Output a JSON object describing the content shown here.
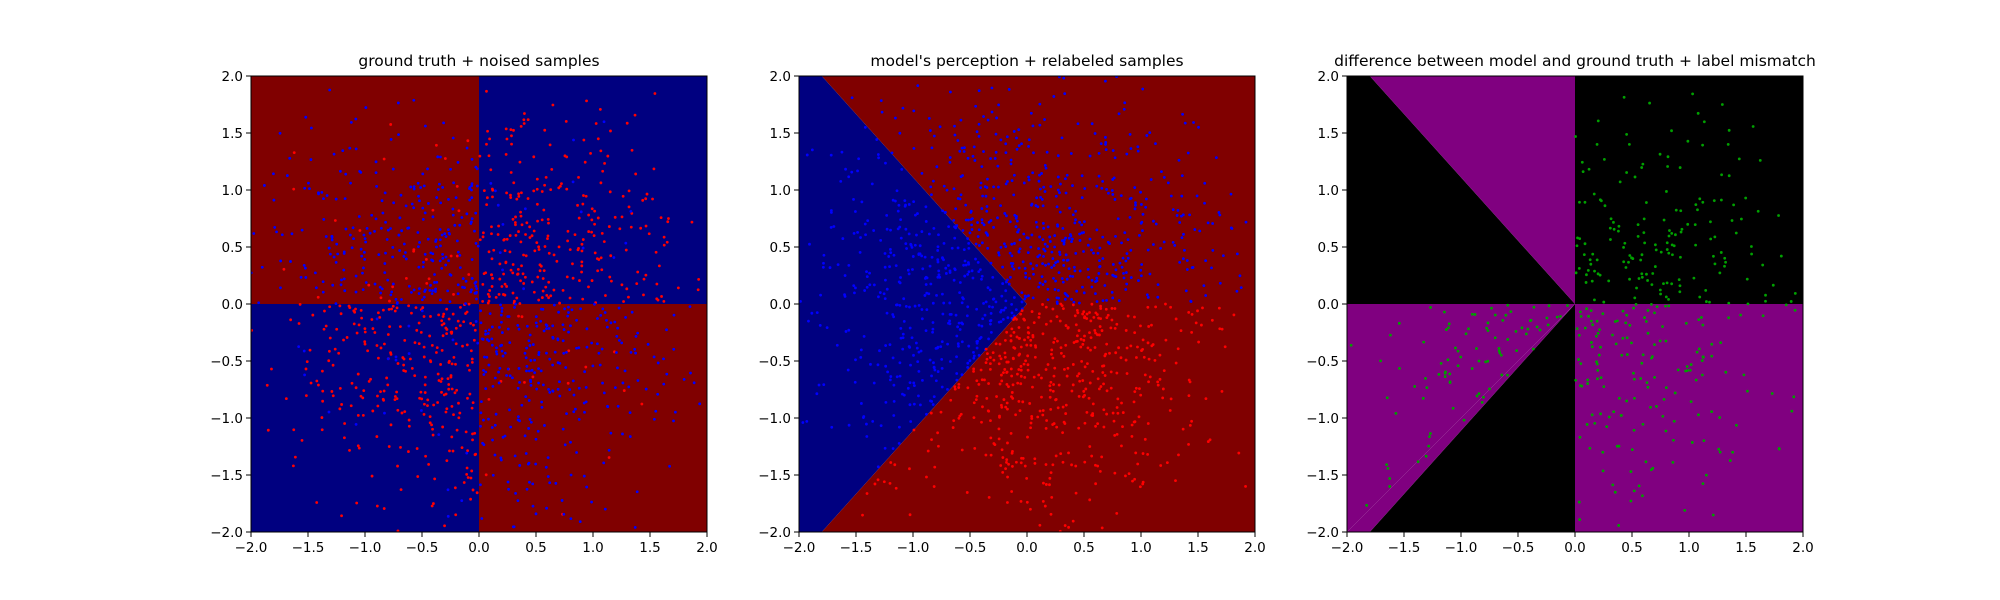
{
  "chart_data": [
    {
      "type": "scatter",
      "title": "ground truth + noised samples",
      "xlabel": "",
      "ylabel": "",
      "xlim": [
        -2.0,
        2.0
      ],
      "ylim": [
        -2.0,
        2.0
      ],
      "xticks": [
        "−2.0",
        "−1.5",
        "−1.0",
        "−0.5",
        "0.0",
        "0.5",
        "1.0",
        "1.5",
        "2.0"
      ],
      "yticks": [
        "−2.0",
        "−1.5",
        "−1.0",
        "−0.5",
        "0.0",
        "0.5",
        "1.0",
        "1.5",
        "2.0"
      ],
      "grid": false,
      "background": "decision regions: dark red where x·y > 0 is false (quadrants II and IV), dark blue in quadrants I and III",
      "regions": [
        {
          "name": "class 1 region",
          "color": "#800000",
          "polygon": [
            [
              -2,
              0
            ],
            [
              0,
              0
            ],
            [
              0,
              2
            ],
            [
              -2,
              2
            ]
          ]
        },
        {
          "name": "class 1 region",
          "color": "#800000",
          "polygon": [
            [
              0,
              -2
            ],
            [
              2,
              -2
            ],
            [
              2,
              0
            ],
            [
              0,
              0
            ]
          ]
        },
        {
          "name": "class 0 region",
          "color": "#000080",
          "polygon": [
            [
              0,
              0
            ],
            [
              2,
              0
            ],
            [
              2,
              2
            ],
            [
              0,
              2
            ]
          ]
        },
        {
          "name": "class 0 region",
          "color": "#000080",
          "polygon": [
            [
              -2,
              -2
            ],
            [
              0,
              -2
            ],
            [
              0,
              0
            ],
            [
              -2,
              0
            ]
          ]
        }
      ],
      "series": [
        {
          "color": "#ff0000",
          "marker": "dot",
          "pattern": "concentrated in quadrants I and III",
          "n_points": 600,
          "seed": 11
        },
        {
          "color": "#0000ff",
          "marker": "dot",
          "pattern": "concentrated in quadrants II and IV",
          "n_points": 600,
          "seed": 23
        }
      ]
    },
    {
      "type": "scatter",
      "title": "model's perception + relabeled samples",
      "xlabel": "",
      "ylabel": "",
      "xlim": [
        -2.0,
        2.0
      ],
      "ylim": [
        -2.0,
        2.0
      ],
      "xticks": [
        "−2.0",
        "−1.5",
        "−1.0",
        "−0.5",
        "0.0",
        "0.5",
        "1.0",
        "1.5",
        "2.0"
      ],
      "yticks": [
        "−2.0",
        "−1.5",
        "−1.0",
        "−0.5",
        "0.0",
        "0.5",
        "1.0",
        "1.5",
        "2.0"
      ],
      "grid": false,
      "regions": [
        {
          "name": "class 0 region",
          "color": "#000080",
          "polygon": [
            [
              -2,
              -2
            ],
            [
              -2,
              2
            ],
            [
              -1.8,
              2
            ],
            [
              0,
              0
            ],
            [
              -1.8,
              -2
            ]
          ]
        },
        {
          "name": "class 1 region",
          "color": "#800000",
          "polygon": [
            [
              -1.8,
              2
            ],
            [
              2,
              2
            ],
            [
              2,
              -2
            ],
            [
              -1.8,
              -2
            ],
            [
              0,
              0
            ]
          ]
        }
      ],
      "series": [
        {
          "color": "#0000ff",
          "marker": "dot",
          "pattern": "left wedge and upper half",
          "n_points": 900,
          "seed": 37
        },
        {
          "color": "#ff0000",
          "marker": "dot",
          "pattern": "lower half below the wedge",
          "n_points": 500,
          "seed": 41
        }
      ]
    },
    {
      "type": "scatter",
      "title": "difference between model and ground truth + label mismatch",
      "xlabel": "",
      "ylabel": "",
      "xlim": [
        -2.0,
        2.0
      ],
      "ylim": [
        -2.0,
        2.0
      ],
      "xticks": [
        "−2.0",
        "−1.5",
        "−1.0",
        "−0.5",
        "0.0",
        "0.5",
        "1.0",
        "1.5",
        "2.0"
      ],
      "yticks": [
        "−2.0",
        "−1.5",
        "−1.0",
        "−0.5",
        "0.0",
        "0.5",
        "1.0",
        "1.5",
        "2.0"
      ],
      "grid": false,
      "regions": [
        {
          "name": "agreement",
          "color": "#000000",
          "polygon": [
            [
              -2,
              2
            ],
            [
              -1.8,
              2
            ],
            [
              0,
              0
            ],
            [
              -2,
              0
            ]
          ]
        },
        {
          "name": "disagreement",
          "color": "#800080",
          "polygon": [
            [
              -1.8,
              2
            ],
            [
              0,
              2
            ],
            [
              0,
              0
            ]
          ]
        },
        {
          "name": "agreement",
          "color": "#000000",
          "polygon": [
            [
              0,
              0
            ],
            [
              2,
              0
            ],
            [
              2,
              2
            ],
            [
              0,
              2
            ]
          ]
        },
        {
          "name": "disagreement",
          "color": "#800080",
          "polygon": [
            [
              -2,
              0
            ],
            [
              0,
              0
            ],
            [
              -2,
              -2
            ]
          ]
        },
        {
          "name": "agreement",
          "color": "#000000",
          "polygon": [
            [
              -1.8,
              -2
            ],
            [
              0,
              -2
            ],
            [
              0,
              0
            ]
          ]
        },
        {
          "name": "disagreement",
          "color": "#800080",
          "polygon": [
            [
              -2,
              -2
            ],
            [
              -1.8,
              -2
            ],
            [
              0,
              0
            ]
          ]
        },
        {
          "name": "disagreement",
          "color": "#800080",
          "polygon": [
            [
              0,
              0
            ],
            [
              2,
              0
            ],
            [
              2,
              -2
            ],
            [
              0,
              -2
            ]
          ]
        }
      ],
      "series": [
        {
          "color": "#00a000",
          "marker": "dot",
          "pattern": "mismatched labels in quadrants I, III and IV",
          "n_points": 420,
          "seed": 53
        }
      ]
    }
  ]
}
